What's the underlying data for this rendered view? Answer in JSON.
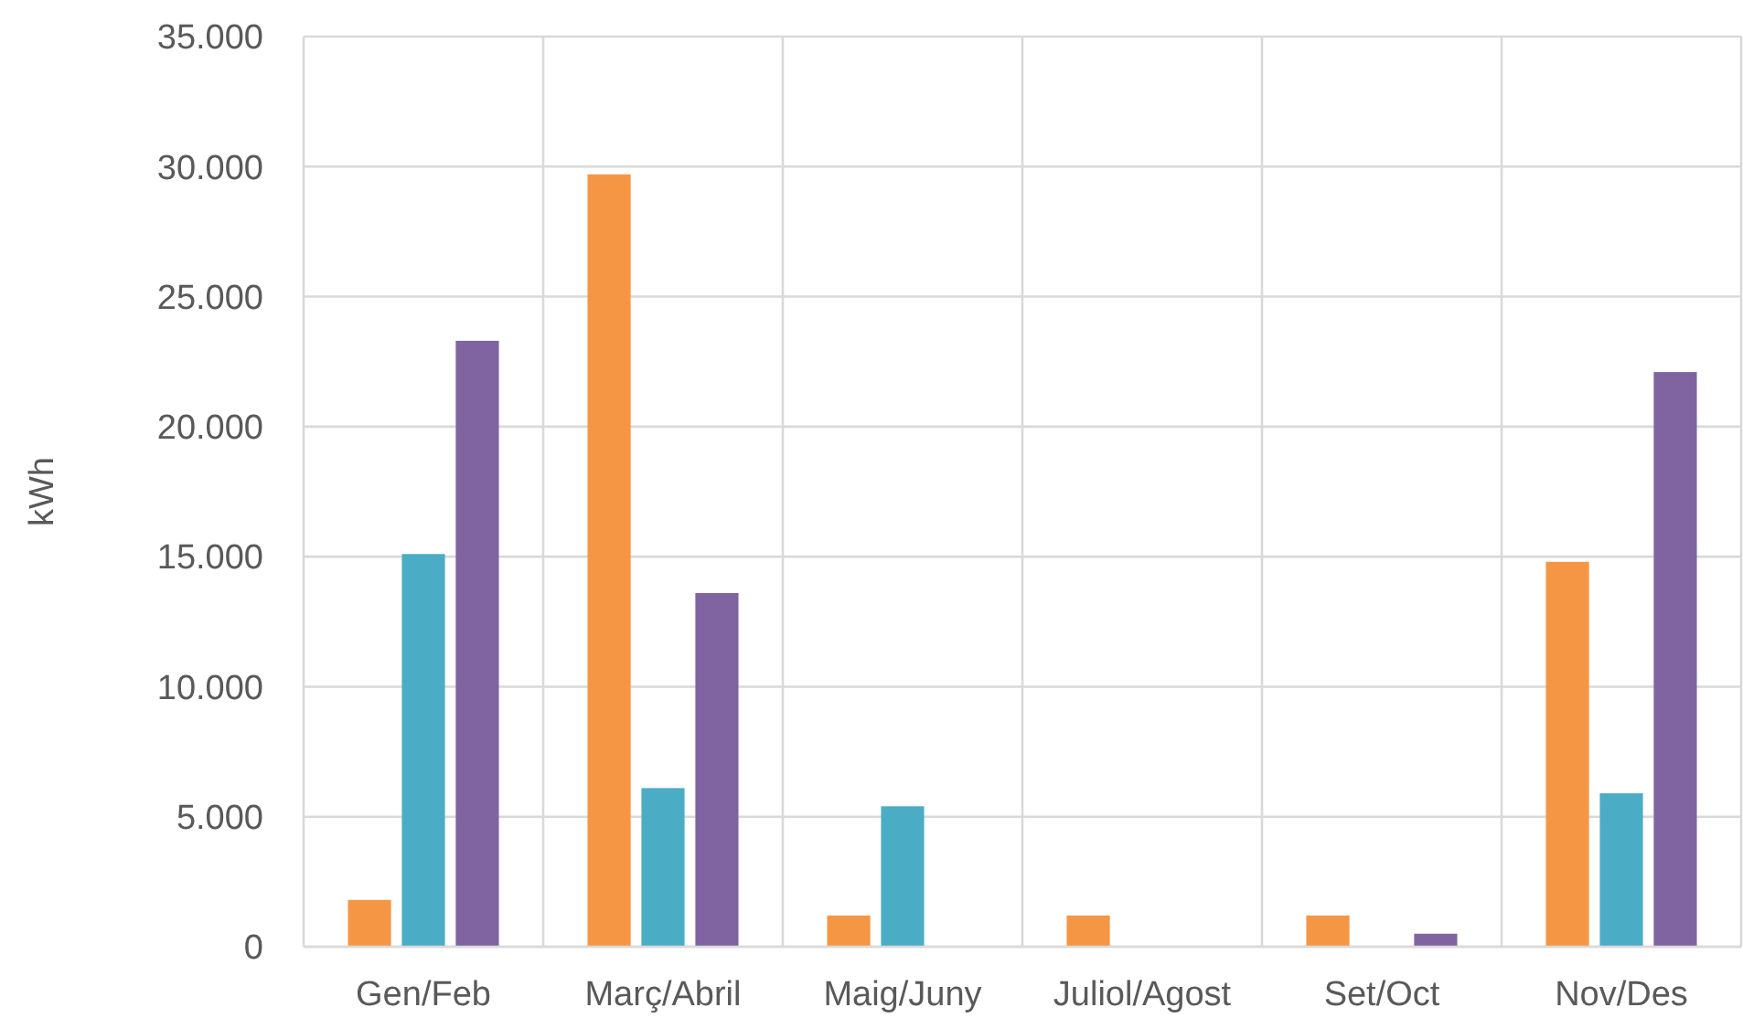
{
  "chart_data": {
    "type": "bar",
    "ylabel": "kWh",
    "categories": [
      "Gen/Feb",
      "Març/Abril",
      "Maig/Juny",
      "Juliol/Agost",
      "Set/Oct",
      "Nov/Des"
    ],
    "series": [
      {
        "color": "#f59645",
        "values": [
          1800,
          29700,
          1200,
          1200,
          1200,
          14800
        ]
      },
      {
        "color": "#4bacc6",
        "values": [
          15100,
          6100,
          5400,
          0,
          0,
          5900
        ]
      },
      {
        "color": "#8064a2",
        "values": [
          23300,
          13600,
          0,
          0,
          500,
          22100
        ]
      }
    ],
    "ylim": [
      0,
      35000
    ],
    "yticks": [
      {
        "value": 0,
        "label": "0"
      },
      {
        "value": 5000,
        "label": "5.000"
      },
      {
        "value": 10000,
        "label": "10.000"
      },
      {
        "value": 15000,
        "label": "15.000"
      },
      {
        "value": 20000,
        "label": "20.000"
      },
      {
        "value": 25000,
        "label": "25.000"
      },
      {
        "value": 30000,
        "label": "30.000"
      },
      {
        "value": 35000,
        "label": "35.000"
      }
    ],
    "grid": true
  }
}
